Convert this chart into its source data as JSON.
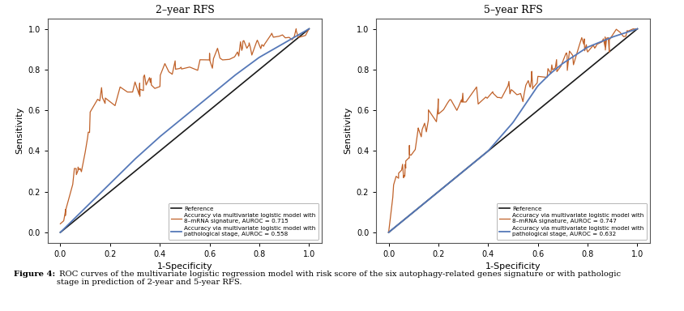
{
  "plot1_title": "2–year RFS",
  "plot2_title": "5–year RFS",
  "xlabel": "1-Specificity",
  "ylabel": "Sensitivity",
  "xlim": [
    -0.05,
    1.05
  ],
  "ylim": [
    -0.05,
    1.05
  ],
  "xticks": [
    0.0,
    0.2,
    0.4,
    0.6,
    0.8,
    1.0
  ],
  "yticks": [
    0.0,
    0.2,
    0.4,
    0.6,
    0.8,
    1.0
  ],
  "ref_color": "#1a1a1a",
  "orange_color": "#c0622a",
  "blue_color": "#5578b8",
  "bg_color": "#ffffff",
  "legend1_lines": [
    "Reference",
    "Accuracy via multivariate logistic model with\n8–mRNA signature, AUROC = 0.715",
    "Accuracy via multivariate logistic model with\npathological stage, AUROC = 0.558"
  ],
  "legend2_lines": [
    "Reference",
    "Accuracy via multivariate logistic model with\n8–mRNA signature, AUROC = 0.747",
    "Accuracy via multivariate logistic model with\npathological stage, AUROC = 0.632"
  ],
  "caption_bold": "Figure 4:",
  "caption_normal": " ROC curves of the multivariate logistic regression model with risk score of the six autophagy-related genes signature or with pathologic\nstage in prediction of 2-year and 5-year RFS.",
  "auroc1_orange": 0.715,
  "auroc1_blue": 0.558,
  "auroc2_orange": 0.747,
  "auroc2_blue": 0.632
}
